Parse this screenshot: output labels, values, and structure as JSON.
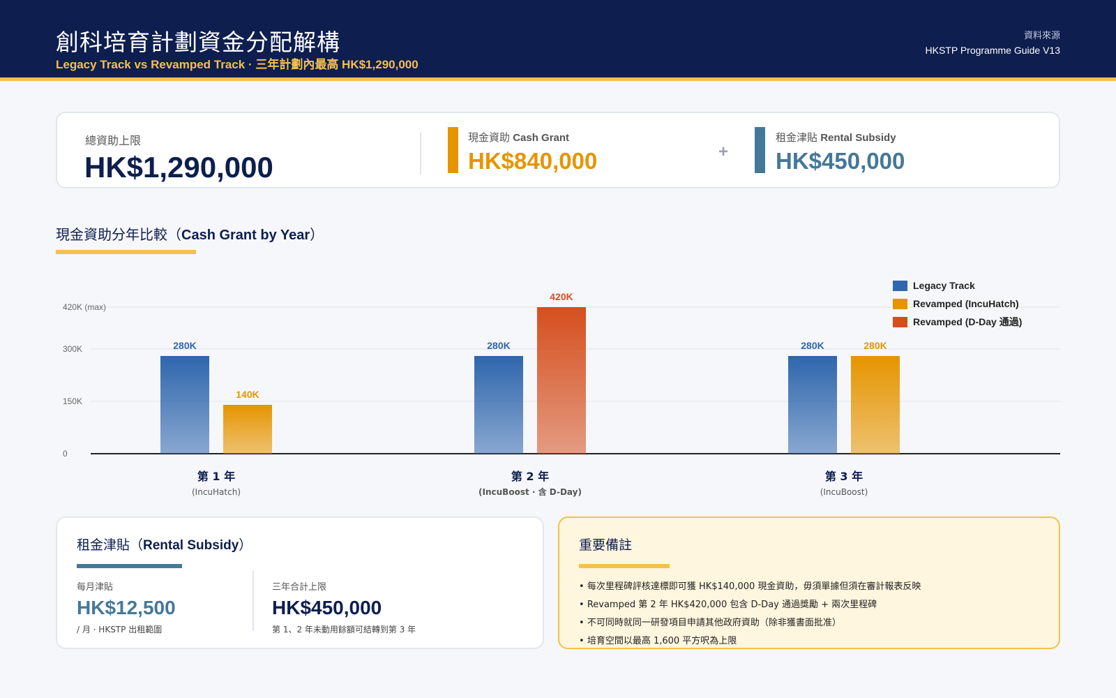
{
  "header": {
    "title": "創科培育計劃資金分配解構",
    "subtitle": "Legacy Track vs Revamped Track · 三年計劃內最高 HK$1,290,000",
    "source_label": "資料來源",
    "source_value": "HKSTP Programme Guide V13"
  },
  "summary": {
    "total_label": "總資助上限",
    "total_value": "HK$1,290,000",
    "cash_label": "現金資助",
    "cash_label_en": "Cash Grant",
    "cash_value": "HK$840,000",
    "plus": "+",
    "rent_label": "租金津貼",
    "rent_label_en": "Rental Subsidy",
    "rent_value": "HK$450,000"
  },
  "section": {
    "title_zh": "現金資助分年比較（",
    "title_en": "Cash Grant by Year",
    "title_end": "）"
  },
  "colors": {
    "legacy": "#2f66ad",
    "incuhatch": "#e69500",
    "dday": "#d54f1e",
    "navy": "#0d1e4f",
    "gold": "#f5c04e",
    "steel": "#457898"
  },
  "chart_data": {
    "type": "bar",
    "ylim": [
      0,
      420
    ],
    "unit": "K",
    "yticks": [
      {
        "value": 0,
        "label": "0"
      },
      {
        "value": 150,
        "label": "150K"
      },
      {
        "value": 300,
        "label": "300K"
      },
      {
        "value": 420,
        "label": "420K (max)"
      }
    ],
    "grid": true,
    "legend_position": "top-right",
    "series": [
      {
        "name": "Legacy Track",
        "color": "#2f66ad"
      },
      {
        "name": "Revamped (IncuHatch)",
        "color": "#e69500"
      },
      {
        "name": "Revamped (D-Day 通過)",
        "color": "#d54f1e"
      }
    ],
    "groups": [
      {
        "label": "第 1 年",
        "sublabel": "(IncuHatch)",
        "bars": [
          {
            "series": "Legacy Track",
            "value": 280,
            "label": "280K"
          },
          {
            "series": "Revamped (IncuHatch)",
            "value": 140,
            "label": "140K"
          }
        ]
      },
      {
        "label": "第 2 年",
        "sublabel": "(IncuBoost · 含 D-Day)",
        "bars": [
          {
            "series": "Legacy Track",
            "value": 280,
            "label": "280K"
          },
          {
            "series": "Revamped (D-Day 通過)",
            "value": 420,
            "label": "420K"
          }
        ]
      },
      {
        "label": "第 3 年",
        "sublabel": "(IncuBoost)",
        "bars": [
          {
            "series": "Legacy Track",
            "value": 280,
            "label": "280K"
          },
          {
            "series": "Revamped (IncuHatch)",
            "value": 280,
            "label": "280K"
          }
        ]
      }
    ]
  },
  "rental": {
    "title_zh": "租金津貼（",
    "title_en": "Rental Subsidy",
    "title_end": "）",
    "monthly_label": "每月津貼",
    "monthly_value": "HK$12,500",
    "monthly_note": "/ 月 · HKSTP 出租範圍",
    "total_label": "三年合計上限",
    "total_value": "HK$450,000",
    "total_note": "第 1、2 年未動用餘額可結轉到第 3 年"
  },
  "notes": {
    "title": "重要備註",
    "items": [
      "每次里程碑評核達標即可獲 HK$140,000 現金資助，毋須單據但須在審計報表反映",
      "Revamped 第 2 年 HK$420,000 包含 D-Day 通過獎勵 + 兩次里程碑",
      "不可同時就同一研發項目申請其他政府資助（除非獲書面批准）",
      "培育空間以最高 1,600 平方呎為上限"
    ]
  }
}
